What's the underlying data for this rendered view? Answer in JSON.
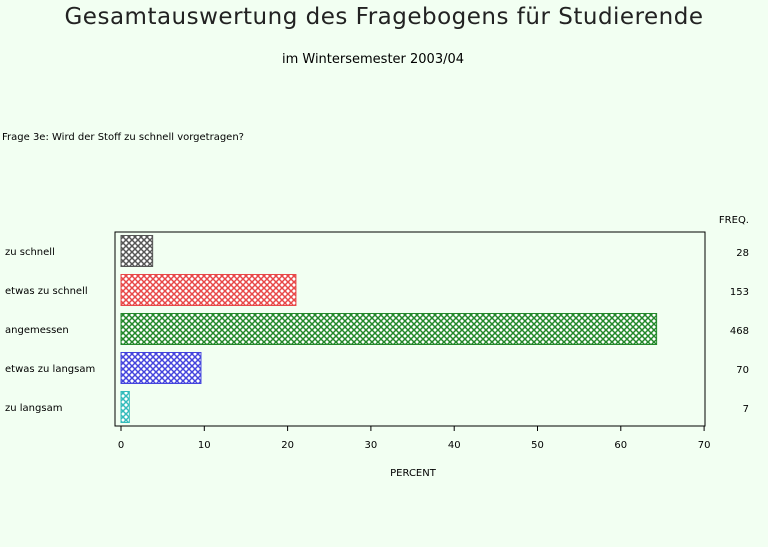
{
  "header": {
    "title": "Gesamtauswertung des Fragebogens für Studierende",
    "subtitle": "im Wintersemester 2003/04",
    "question": "Frage 3e: Wird der Stoff zu schnell vorgetragen?"
  },
  "chart_data": {
    "type": "bar",
    "orientation": "horizontal",
    "categories": [
      "zu schnell",
      "etwas zu schnell",
      "angemessen",
      "etwas zu langsam",
      "zu langsam"
    ],
    "values": [
      3.8,
      21.0,
      64.3,
      9.6,
      1.0
    ],
    "freq": [
      28,
      153,
      468,
      70,
      7
    ],
    "freq_header": "FREQ.",
    "xlabel": "PERCENT",
    "xlim": [
      0,
      70
    ],
    "xticks": [
      0,
      10,
      20,
      30,
      40,
      50,
      60,
      70
    ],
    "colors": [
      "#555555",
      "#e84848",
      "#22882a",
      "#4444dd",
      "#33bbbb"
    ],
    "fill_pattern": "crosshatch",
    "grid": false,
    "legend": "none"
  }
}
